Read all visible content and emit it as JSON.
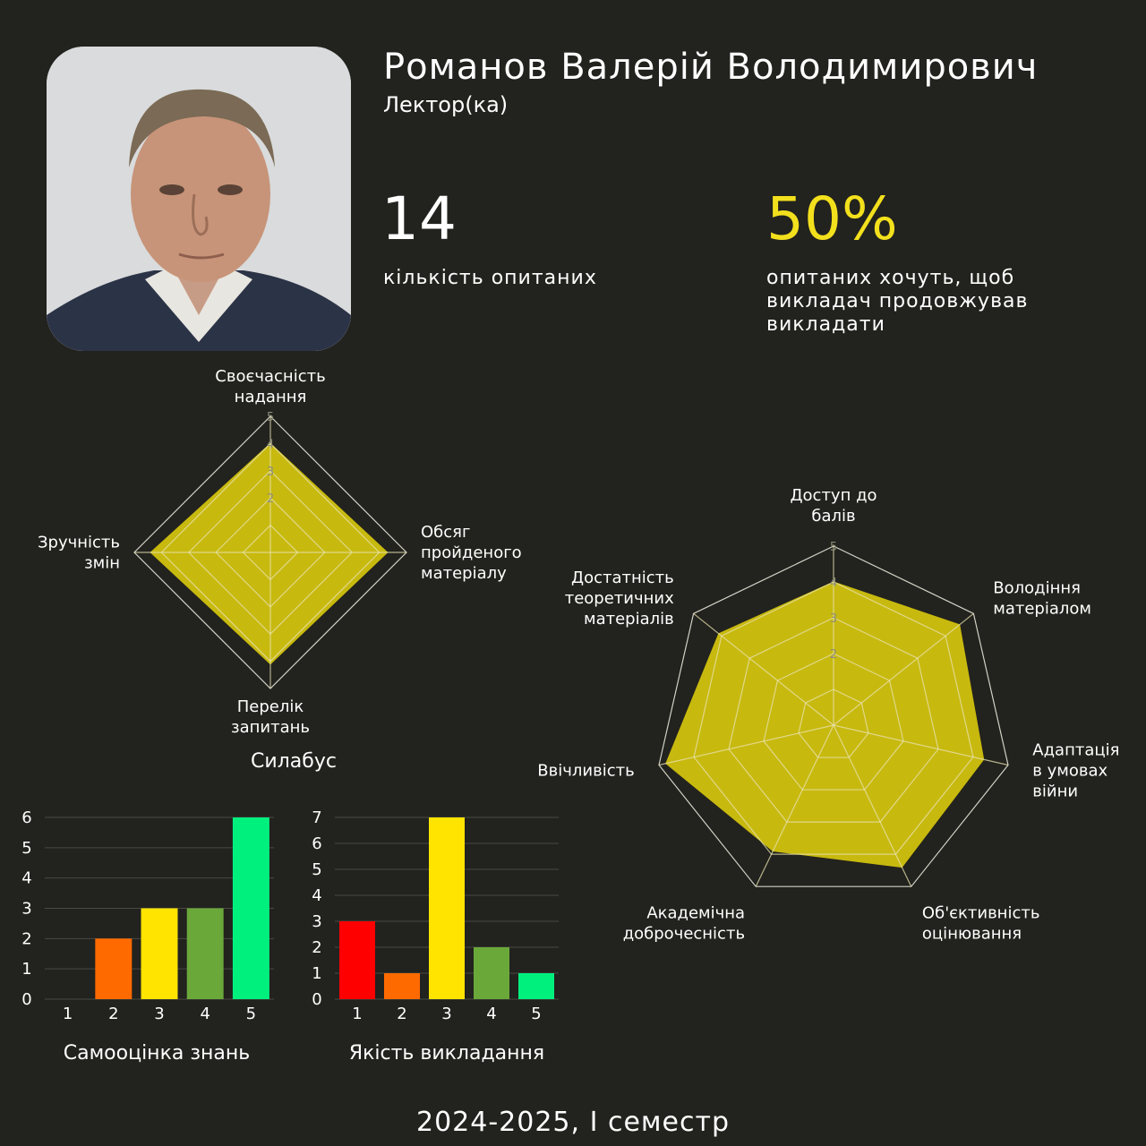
{
  "profile": {
    "name": "Романов Валерій Володимирович",
    "role": "Лектор(ка)"
  },
  "stats": {
    "respondents_value": "14",
    "respondents_label": "кількість опитаних",
    "continue_value": "50%",
    "continue_label": "опитаних хочуть, щоб викладач продовжував викладати"
  },
  "footer": "2024-2025, І семестр",
  "colors": {
    "background": "#22221e",
    "radar_fill": "#c8b90f",
    "accent_yellow": "#f3e01d",
    "bar_colors": [
      "#ff0000",
      "#ff6a00",
      "#ffe400",
      "#6aa83a",
      "#00f07e"
    ]
  },
  "chart_data": [
    {
      "type": "radar",
      "title": "Силабус",
      "max": 5,
      "ticks": [
        "2",
        "3",
        "4",
        "5"
      ],
      "axes": [
        {
          "label": "Своєчасність надання",
          "lines": [
            "Своєчасність",
            "надання"
          ],
          "value": 4
        },
        {
          "label": "Обсяг пройденого матеріалу",
          "lines": [
            "Обсяг",
            "пройденого",
            "матеріалу"
          ],
          "value": 4.3
        },
        {
          "label": "Перелік запитань",
          "lines": [
            "Перелік",
            "запитань"
          ],
          "value": 4.1
        },
        {
          "label": "Зручність змін",
          "lines": [
            "Зручність",
            "змін"
          ],
          "value": 4.4
        }
      ]
    },
    {
      "type": "radar",
      "title": "",
      "max": 5,
      "ticks": [
        "2",
        "3",
        "4",
        "5"
      ],
      "axes": [
        {
          "label": "Доступ до балів",
          "lines": [
            "Доступ до",
            "балів"
          ],
          "value": 4
        },
        {
          "label": "Володіння матеріалом",
          "lines": [
            "Володіння",
            "матеріалом"
          ],
          "value": 4.5
        },
        {
          "label": "Адаптація в умовах війни",
          "lines": [
            "Адаптація",
            "в умовах",
            "війни"
          ],
          "value": 4.3
        },
        {
          "label": "Об'єктивність оцінювання",
          "lines": [
            "Об'єктивність",
            "оцінювання"
          ],
          "value": 4.4
        },
        {
          "label": "Академічна доброчесність",
          "lines": [
            "Академічна",
            "доброчесність"
          ],
          "value": 3.9
        },
        {
          "label": "Ввічливість",
          "lines": [
            "Ввічливість"
          ],
          "value": 4.8
        },
        {
          "label": "Достатність теоретичних матеріалів",
          "lines": [
            "Достатність",
            "теоретичних",
            "матеріалів"
          ],
          "value": 4.1
        }
      ]
    },
    {
      "type": "bar",
      "title": "Самооцінка знань",
      "categories": [
        "1",
        "2",
        "3",
        "4",
        "5"
      ],
      "values": [
        0,
        2,
        3,
        3,
        6
      ],
      "ylim": [
        0,
        6
      ],
      "yticks": [
        "0",
        "1",
        "2",
        "3",
        "4",
        "5",
        "6"
      ]
    },
    {
      "type": "bar",
      "title": "Якість викладання",
      "categories": [
        "1",
        "2",
        "3",
        "4",
        "5"
      ],
      "values": [
        3,
        1,
        7,
        2,
        1
      ],
      "ylim": [
        0,
        7
      ],
      "yticks": [
        "0",
        "1",
        "2",
        "3",
        "4",
        "5",
        "6",
        "7"
      ]
    }
  ]
}
